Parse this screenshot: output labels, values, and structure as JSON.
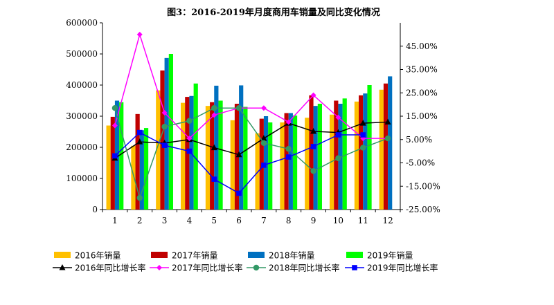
{
  "chart_data": {
    "type": "bar",
    "title": "图3：2016-2019年月度商用车销量及同比变化情况",
    "categories": [
      "1",
      "2",
      "3",
      "4",
      "5",
      "6",
      "7",
      "8",
      "9",
      "10",
      "11",
      "12"
    ],
    "ylim": [
      0,
      600000
    ],
    "y_ticks": [
      "0",
      "100000",
      "200000",
      "300000",
      "400000",
      "500000",
      "600000"
    ],
    "y2lim": [
      -25,
      55
    ],
    "y2_ticks": [
      "-25.00%",
      "-15.00%",
      "-5.00%",
      "5.00%",
      "15.00%",
      "25.00%",
      "35.00%",
      "45.00%"
    ],
    "grid": false,
    "legend_position": "bottom",
    "series": [
      {
        "name": "2016年销量",
        "type": "bar",
        "color": "#FFC000",
        "values": [
          270000,
          205000,
          383000,
          343000,
          333000,
          287000,
          245000,
          280000,
          295000,
          305000,
          347000,
          385000
        ]
      },
      {
        "name": "2017年销量",
        "type": "bar",
        "color": "#C00000",
        "values": [
          298000,
          307000,
          447000,
          362000,
          345000,
          340000,
          292000,
          310000,
          367000,
          350000,
          367000,
          405000
        ]
      },
      {
        "name": "2018年销量",
        "type": "bar",
        "color": "#0070C0",
        "values": [
          350000,
          255000,
          487000,
          365000,
          398000,
          399000,
          300000,
          310000,
          333000,
          340000,
          373000,
          428000
        ]
      },
      {
        "name": "2019年销量",
        "type": "bar",
        "color": "#00FF00",
        "values": [
          345000,
          262000,
          500000,
          405000,
          350000,
          330000,
          280000,
          302000,
          340000,
          357000,
          400000,
          null
        ]
      },
      {
        "name": "2016年同比增长率",
        "type": "line",
        "axis": "right",
        "color": "#000000",
        "marker": "triangle",
        "values": [
          -3.0,
          4.0,
          3.5,
          5.0,
          1.5,
          -1.5,
          5.5,
          12.0,
          8.5,
          8.0,
          12.0,
          12.5
        ]
      },
      {
        "name": "2017年同比增长率",
        "type": "line",
        "axis": "right",
        "color": "#FF00FF",
        "marker": "diamond",
        "values": [
          11.0,
          50.0,
          16.5,
          5.5,
          15.5,
          18.5,
          18.5,
          12.5,
          24.0,
          14.5,
          5.5,
          5.5
        ]
      },
      {
        "name": "2018年同比增长率",
        "type": "line",
        "axis": "right",
        "color": "#339966",
        "marker": "circle",
        "values": [
          18.5,
          -20.0,
          10.5,
          13.0,
          18.5,
          18.5,
          3.5,
          1.0,
          -8.5,
          -3.0,
          1.5,
          5.5
        ]
      },
      {
        "name": "2019年同比增长率",
        "type": "line",
        "axis": "right",
        "color": "#0000FF",
        "marker": "square",
        "values": [
          -2.0,
          8.0,
          2.5,
          0.0,
          -12.0,
          -18.0,
          -6.0,
          -2.5,
          2.0,
          7.0,
          7.0,
          null
        ]
      }
    ]
  }
}
